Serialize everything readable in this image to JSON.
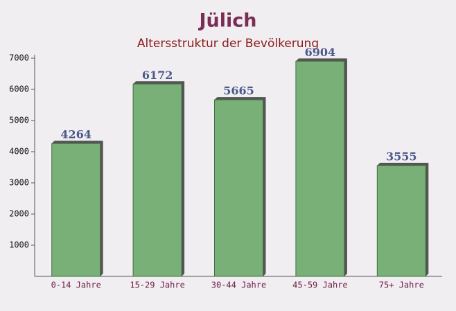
{
  "chart_data": {
    "type": "bar",
    "title": "Jülich",
    "subtitle": "Altersstruktur der Bevölkerung",
    "categories": [
      "0-14 Jahre",
      "15-29 Jahre",
      "30-44 Jahre",
      "45-59 Jahre",
      "75+ Jahre"
    ],
    "values": [
      4264,
      6172,
      5665,
      6904,
      3555
    ],
    "color": "#6aa86a",
    "ylim": [
      0,
      7000
    ],
    "yticks": [
      1000,
      2000,
      3000,
      4000,
      5000,
      6000,
      7000
    ]
  }
}
